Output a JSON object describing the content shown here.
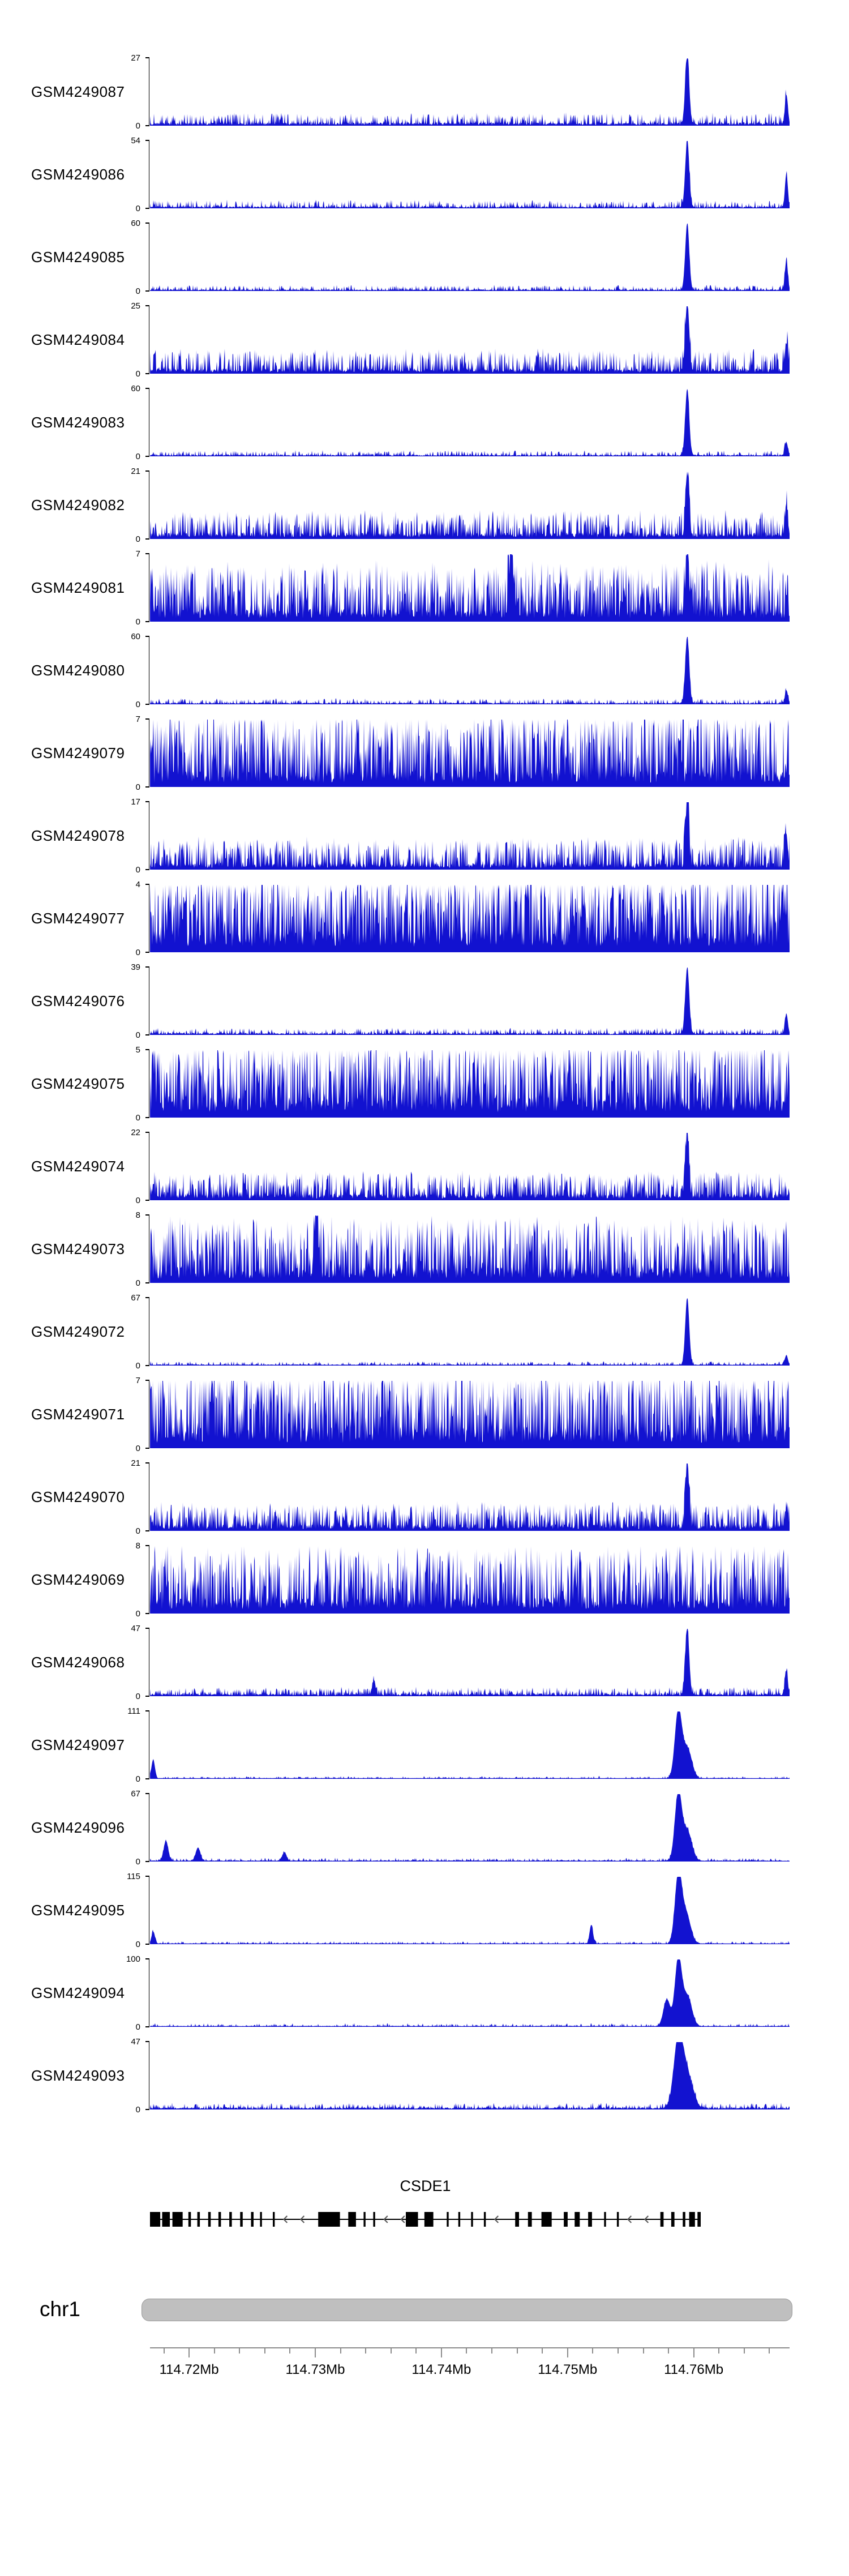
{
  "figure": {
    "signal_color": "#1212d0",
    "axis_color": "#8c8c8c",
    "text_color": "#000000"
  },
  "chart_data": {
    "type": "area",
    "subtype": "genome-browser-signal-tracks",
    "genome_region": {
      "chromosome": "chr1",
      "start_mb": 114.7169,
      "end_mb": 114.7676,
      "units": "Mb"
    },
    "x_axis": {
      "tick_labels": [
        "114.72Mb",
        "114.73Mb",
        "114.74Mb",
        "114.75Mb",
        "114.76Mb"
      ],
      "tick_positions_mb": [
        114.72,
        114.73,
        114.74,
        114.75,
        114.76
      ],
      "minor_tick_interval_mb": 0.002
    },
    "tracks": [
      {
        "label": "GSM4249087",
        "ylim": [
          0,
          27
        ],
        "ymax_label": "27",
        "ymin_label": "0",
        "profile": "sparse",
        "noise_base": 0.03,
        "noise_spike": 0.15,
        "spike_freq": 0.35,
        "peaks": [
          [
            0.84,
            1,
            3.5
          ],
          [
            0.995,
            0.45,
            2.5
          ]
        ],
        "seed": 11
      },
      {
        "label": "GSM4249086",
        "ylim": [
          0,
          54
        ],
        "ymax_label": "54",
        "ymin_label": "0",
        "profile": "sparse",
        "noise_base": 0.02,
        "noise_spike": 0.1,
        "spike_freq": 0.3,
        "peaks": [
          [
            0.84,
            1,
            3.5
          ],
          [
            0.995,
            0.5,
            2.5
          ]
        ],
        "seed": 12
      },
      {
        "label": "GSM4249085",
        "ylim": [
          0,
          60
        ],
        "ymax_label": "60",
        "ymin_label": "0",
        "profile": "sparse",
        "noise_base": 0.015,
        "noise_spike": 0.07,
        "spike_freq": 0.3,
        "peaks": [
          [
            0.84,
            1,
            3.5
          ],
          [
            0.995,
            0.45,
            2.5
          ]
        ],
        "seed": 13
      },
      {
        "label": "GSM4249084",
        "ylim": [
          0,
          25
        ],
        "ymax_label": "25",
        "ymin_label": "0",
        "profile": "moderate",
        "noise_base": 0.05,
        "noise_spike": 0.3,
        "spike_freq": 0.45,
        "peaks": [
          [
            0.84,
            1,
            3.5
          ],
          [
            0.995,
            0.4,
            2.5
          ]
        ],
        "seed": 14
      },
      {
        "label": "GSM4249083",
        "ylim": [
          0,
          60
        ],
        "ymax_label": "60",
        "ymin_label": "0",
        "profile": "sparse",
        "noise_base": 0.015,
        "noise_spike": 0.07,
        "spike_freq": 0.3,
        "peaks": [
          [
            0.84,
            1,
            3.5
          ],
          [
            0.995,
            0.2,
            2.5
          ]
        ],
        "seed": 15
      },
      {
        "label": "GSM4249082",
        "ylim": [
          0,
          21
        ],
        "ymax_label": "21",
        "ymin_label": "0",
        "profile": "moderate",
        "noise_base": 0.06,
        "noise_spike": 0.35,
        "spike_freq": 0.45,
        "peaks": [
          [
            0.84,
            0.9,
            3
          ],
          [
            0.995,
            0.45,
            2.5
          ]
        ],
        "seed": 16
      },
      {
        "label": "GSM4249081",
        "ylim": [
          0,
          7
        ],
        "ymax_label": "7",
        "ymin_label": "0",
        "profile": "dense",
        "noise_base": 0.12,
        "noise_spike": 0.75,
        "spike_freq": 0.55,
        "peaks": [
          [
            0.565,
            1,
            3
          ],
          [
            0.84,
            0.9,
            3
          ]
        ],
        "seed": 17
      },
      {
        "label": "GSM4249080",
        "ylim": [
          0,
          60
        ],
        "ymax_label": "60",
        "ymin_label": "0",
        "profile": "sparse",
        "noise_base": 0.015,
        "noise_spike": 0.07,
        "spike_freq": 0.3,
        "peaks": [
          [
            0.84,
            1,
            3.5
          ],
          [
            0.995,
            0.2,
            2.5
          ]
        ],
        "seed": 18
      },
      {
        "label": "GSM4249079",
        "ylim": [
          0,
          7
        ],
        "ymax_label": "7",
        "ymin_label": "0",
        "profile": "dense",
        "noise_base": 0.15,
        "noise_spike": 0.95,
        "spike_freq": 0.6,
        "peaks": [],
        "seed": 19
      },
      {
        "label": "GSM4249078",
        "ylim": [
          0,
          17
        ],
        "ymax_label": "17",
        "ymin_label": "0",
        "profile": "moderate",
        "noise_base": 0.06,
        "noise_spike": 0.4,
        "spike_freq": 0.5,
        "peaks": [
          [
            0.84,
            1,
            3
          ],
          [
            0.995,
            0.5,
            2.5
          ]
        ],
        "seed": 20
      },
      {
        "label": "GSM4249077",
        "ylim": [
          0,
          4
        ],
        "ymax_label": "4",
        "ymin_label": "0",
        "profile": "dense",
        "noise_base": 0.2,
        "noise_spike": 1.0,
        "spike_freq": 0.65,
        "peaks": [],
        "seed": 21
      },
      {
        "label": "GSM4249076",
        "ylim": [
          0,
          39
        ],
        "ymax_label": "39",
        "ymin_label": "0",
        "profile": "sparse",
        "noise_base": 0.02,
        "noise_spike": 0.08,
        "spike_freq": 0.3,
        "peaks": [
          [
            0.84,
            1,
            3.5
          ],
          [
            0.995,
            0.3,
            2.5
          ]
        ],
        "seed": 22
      },
      {
        "label": "GSM4249075",
        "ylim": [
          0,
          5
        ],
        "ymax_label": "5",
        "ymin_label": "0",
        "profile": "dense",
        "noise_base": 0.2,
        "noise_spike": 0.95,
        "spike_freq": 0.6,
        "peaks": [],
        "seed": 23
      },
      {
        "label": "GSM4249074",
        "ylim": [
          0,
          22
        ],
        "ymax_label": "22",
        "ymin_label": "0",
        "profile": "moderate",
        "noise_base": 0.06,
        "noise_spike": 0.35,
        "spike_freq": 0.5,
        "peaks": [
          [
            0.84,
            1,
            3
          ]
        ],
        "seed": 24
      },
      {
        "label": "GSM4249073",
        "ylim": [
          0,
          8
        ],
        "ymax_label": "8",
        "ymin_label": "0",
        "profile": "dense",
        "noise_base": 0.15,
        "noise_spike": 0.8,
        "spike_freq": 0.55,
        "peaks": [
          [
            0.26,
            1,
            3
          ]
        ],
        "seed": 25
      },
      {
        "label": "GSM4249072",
        "ylim": [
          0,
          67
        ],
        "ymax_label": "67",
        "ymin_label": "0",
        "profile": "sparse",
        "noise_base": 0.012,
        "noise_spike": 0.05,
        "spike_freq": 0.25,
        "peaks": [
          [
            0.84,
            1,
            3.5
          ],
          [
            0.995,
            0.15,
            2.5
          ]
        ],
        "seed": 26
      },
      {
        "label": "GSM4249071",
        "ylim": [
          0,
          7
        ],
        "ymax_label": "7",
        "ymin_label": "0",
        "profile": "dense",
        "noise_base": 0.2,
        "noise_spike": 1.0,
        "spike_freq": 0.6,
        "peaks": [],
        "seed": 27
      },
      {
        "label": "GSM4249070",
        "ylim": [
          0,
          21
        ],
        "ymax_label": "21",
        "ymin_label": "0",
        "profile": "moderate",
        "noise_base": 0.06,
        "noise_spike": 0.35,
        "spike_freq": 0.5,
        "peaks": [
          [
            0.84,
            1,
            3
          ],
          [
            0.995,
            0.3,
            2.5
          ]
        ],
        "seed": 28
      },
      {
        "label": "GSM4249069",
        "ylim": [
          0,
          8
        ],
        "ymax_label": "8",
        "ymin_label": "0",
        "profile": "dense",
        "noise_base": 0.15,
        "noise_spike": 0.85,
        "spike_freq": 0.55,
        "peaks": [],
        "seed": 29
      },
      {
        "label": "GSM4249068",
        "ylim": [
          0,
          47
        ],
        "ymax_label": "47",
        "ymin_label": "0",
        "profile": "sparse",
        "noise_base": 0.025,
        "noise_spike": 0.1,
        "spike_freq": 0.35,
        "peaks": [
          [
            0.84,
            1,
            3.5
          ],
          [
            0.35,
            0.2,
            3
          ],
          [
            0.995,
            0.35,
            2.5
          ]
        ],
        "seed": 30
      },
      {
        "label": "GSM4249097",
        "ylim": [
          0,
          111
        ],
        "ymax_label": "111",
        "ymin_label": "0",
        "profile": "sparse",
        "noise_base": 0.008,
        "noise_spike": 0.03,
        "spike_freq": 0.25,
        "peaks": [
          [
            0.826,
            1,
            6
          ],
          [
            0.84,
            0.45,
            8
          ],
          [
            0.005,
            0.28,
            3
          ]
        ],
        "seed": 31
      },
      {
        "label": "GSM4249096",
        "ylim": [
          0,
          67
        ],
        "ymax_label": "67",
        "ymin_label": "0",
        "profile": "sparse",
        "noise_base": 0.012,
        "noise_spike": 0.04,
        "spike_freq": 0.25,
        "peaks": [
          [
            0.826,
            1,
            6
          ],
          [
            0.84,
            0.45,
            8
          ],
          [
            0.025,
            0.3,
            4
          ],
          [
            0.075,
            0.2,
            4
          ],
          [
            0.21,
            0.12,
            4
          ]
        ],
        "seed": 32
      },
      {
        "label": "GSM4249095",
        "ylim": [
          0,
          115
        ],
        "ymax_label": "115",
        "ymin_label": "0",
        "profile": "sparse",
        "noise_base": 0.008,
        "noise_spike": 0.035,
        "spike_freq": 0.25,
        "peaks": [
          [
            0.826,
            1,
            6
          ],
          [
            0.838,
            0.45,
            8
          ],
          [
            0.69,
            0.28,
            3
          ],
          [
            0.005,
            0.18,
            3
          ]
        ],
        "seed": 33
      },
      {
        "label": "GSM4249094",
        "ylim": [
          0,
          100
        ],
        "ymax_label": "100",
        "ymin_label": "0",
        "profile": "sparse",
        "noise_base": 0.01,
        "noise_spike": 0.04,
        "spike_freq": 0.25,
        "peaks": [
          [
            0.826,
            1,
            6
          ],
          [
            0.808,
            0.4,
            6
          ],
          [
            0.84,
            0.45,
            8
          ]
        ],
        "seed": 34
      },
      {
        "label": "GSM4249093",
        "ylim": [
          0,
          47
        ],
        "ymax_label": "47",
        "ymin_label": "0",
        "profile": "sparse",
        "noise_base": 0.02,
        "noise_spike": 0.07,
        "spike_freq": 0.3,
        "peaks": [
          [
            0.826,
            1,
            8
          ],
          [
            0.84,
            0.5,
            10
          ]
        ],
        "seed": 35
      }
    ],
    "gene_track": {
      "gene_name": "CSDE1",
      "strand": "-",
      "line_start": 0.0,
      "line_end": 0.861,
      "exons": [
        [
          0.0,
          0.016
        ],
        [
          0.019,
          0.012
        ],
        [
          0.035,
          0.016
        ],
        [
          0.06,
          0.004
        ],
        [
          0.074,
          0.004
        ],
        [
          0.091,
          0.004
        ],
        [
          0.107,
          0.004
        ],
        [
          0.124,
          0.004
        ],
        [
          0.141,
          0.004
        ],
        [
          0.158,
          0.004
        ],
        [
          0.172,
          0.003
        ],
        [
          0.192,
          0.003
        ],
        [
          0.263,
          0.034
        ],
        [
          0.31,
          0.012
        ],
        [
          0.334,
          0.003
        ],
        [
          0.349,
          0.003
        ],
        [
          0.4,
          0.019
        ],
        [
          0.429,
          0.014
        ],
        [
          0.464,
          0.003
        ],
        [
          0.482,
          0.003
        ],
        [
          0.502,
          0.003
        ],
        [
          0.522,
          0.003
        ],
        [
          0.571,
          0.006
        ],
        [
          0.591,
          0.006
        ],
        [
          0.612,
          0.016
        ],
        [
          0.647,
          0.006
        ],
        [
          0.664,
          0.008
        ],
        [
          0.685,
          0.006
        ],
        [
          0.71,
          0.003
        ],
        [
          0.73,
          0.003
        ],
        [
          0.798,
          0.005
        ],
        [
          0.815,
          0.005
        ],
        [
          0.833,
          0.004
        ],
        [
          0.843,
          0.009
        ],
        [
          0.856,
          0.005
        ]
      ]
    },
    "ideogram": {
      "chromosome_label": "chr1",
      "color": "#bfbfbf",
      "border_color": "#9a9a9a"
    }
  }
}
